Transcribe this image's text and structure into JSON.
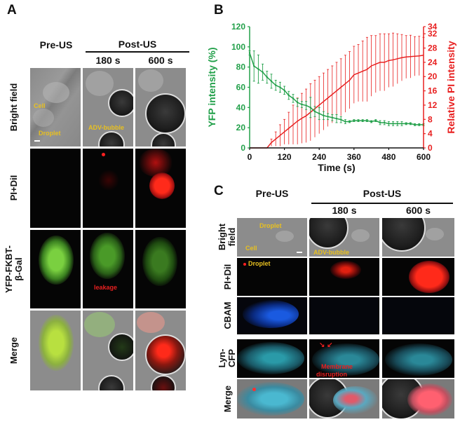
{
  "panel_a": {
    "letter": "A",
    "pre_label": "Pre-US",
    "post_label": "Post-US",
    "times": [
      "180 s",
      "600 s"
    ],
    "rows": [
      "Bright field",
      "PI+DiI",
      "YFP-FKBT-",
      "β-Gal",
      "Merge"
    ],
    "annotations": {
      "cell": "Cell",
      "droplet": "Droplet",
      "bubble": "ADV-bubble",
      "leakage": "leakage"
    }
  },
  "panel_b": {
    "letter": "B"
  },
  "panel_c": {
    "letter": "C",
    "pre_label": "Pre-US",
    "post_label": "Post-US",
    "times": [
      "180 s",
      "600 s"
    ],
    "rows": [
      "Bright",
      "field",
      "PI+DiI",
      "CBAM",
      "Lyn-",
      "CFP",
      "Merge"
    ],
    "annotations": {
      "droplet": "Droplet",
      "cell": "Cell",
      "bubble": "ADV-bubble",
      "droplet2": "Droplet",
      "membrane1": "Membrane",
      "membrane2": "disruption"
    }
  },
  "chart_data": {
    "type": "line",
    "xlabel": "Time (s)",
    "ylabel_left": "YFP intensity (%)",
    "ylabel_right": "Relative PI intensity",
    "xlim": [
      0,
      600
    ],
    "xticks": [
      0,
      120,
      240,
      360,
      480,
      600
    ],
    "ylim_left": [
      0,
      120
    ],
    "yticks_left": [
      0,
      20,
      40,
      60,
      80,
      100,
      120
    ],
    "ylim_right": [
      0,
      34
    ],
    "yticks_right": [
      0,
      4,
      8,
      12,
      16,
      20,
      24,
      28,
      32,
      34
    ],
    "grid": false,
    "x": [
      0,
      15,
      30,
      45,
      60,
      75,
      90,
      105,
      120,
      135,
      150,
      165,
      180,
      195,
      210,
      225,
      240,
      255,
      270,
      285,
      300,
      315,
      330,
      345,
      360,
      375,
      390,
      405,
      420,
      435,
      450,
      465,
      480,
      495,
      510,
      525,
      540,
      555,
      570,
      585,
      600
    ],
    "series": [
      {
        "axis": "left",
        "color": "#22a04a",
        "values": [
          94,
          81,
          78,
          75,
          70,
          66,
          62,
          60,
          57,
          52,
          49,
          45,
          43,
          42,
          40,
          36,
          34,
          32,
          31,
          30,
          29,
          28,
          26,
          26,
          27,
          27,
          27,
          27,
          26,
          27,
          25,
          25,
          24,
          24,
          24,
          24,
          24,
          24,
          23,
          23,
          23
        ],
        "errors": [
          2,
          15,
          14,
          8,
          6,
          7,
          5,
          5,
          4,
          4,
          4,
          4,
          3,
          4,
          10,
          5,
          6,
          4,
          3,
          3,
          4,
          3,
          2,
          1,
          1,
          1,
          1,
          1,
          1,
          1,
          2,
          2,
          2,
          2,
          2,
          2,
          1,
          1,
          1,
          1,
          1
        ]
      },
      {
        "axis": "right",
        "color": "#e82020",
        "values": [
          0,
          0,
          0,
          0,
          0,
          1.5,
          2.5,
          3.5,
          4.5,
          5.5,
          6.5,
          7.5,
          8.3,
          9,
          10,
          11,
          12,
          13,
          14,
          15,
          16,
          17,
          18,
          19,
          20.5,
          21,
          21.5,
          22,
          23,
          23.5,
          24,
          24,
          24.5,
          24.7,
          25,
          25.3,
          25.5,
          25.6,
          25.7,
          25.8,
          26
        ],
        "errors": [
          0,
          0,
          0,
          0,
          0,
          1,
          2,
          3,
          3.5,
          4.5,
          5.5,
          6.5,
          7,
          7.5,
          8,
          8,
          8,
          8,
          8,
          8,
          8,
          8,
          8,
          8,
          8,
          8,
          8.5,
          9,
          8.5,
          8,
          8,
          8,
          7.5,
          7.5,
          7,
          6.5,
          6,
          6,
          5.5,
          5.5,
          5
        ]
      }
    ]
  }
}
